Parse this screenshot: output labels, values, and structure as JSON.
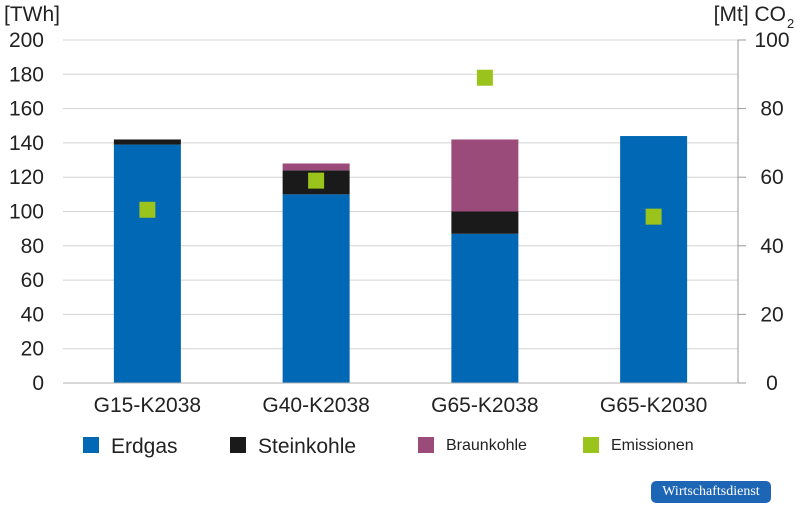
{
  "chart_data": {
    "type": "bar",
    "stacked": true,
    "left_axis_unit": "[TWh]",
    "right_axis_unit_main": "[Mt] CO",
    "right_axis_unit_sub": "2",
    "left_ylim": [
      0,
      200
    ],
    "left_ticks": [
      0,
      20,
      40,
      60,
      80,
      100,
      120,
      140,
      160,
      180,
      200
    ],
    "right_ylim": [
      0,
      100
    ],
    "right_ticks": [
      0,
      20,
      40,
      60,
      80,
      100
    ],
    "categories": [
      "G15-K2038",
      "G40-K2038",
      "G65-K2038",
      "G65-K2030"
    ],
    "series": [
      {
        "name": "Erdgas",
        "color": "#0068b4",
        "axis": "left",
        "values": [
          139,
          110,
          87,
          144
        ]
      },
      {
        "name": "Steinkohle",
        "color": "#1a1a1a",
        "axis": "left",
        "values": [
          3,
          14,
          13,
          0
        ]
      },
      {
        "name": "Braunkohle",
        "color": "#9b4b7a",
        "axis": "left",
        "values": [
          0,
          4,
          42,
          0
        ]
      }
    ],
    "points": {
      "name": "Emissionen",
      "color": "#9ac31c",
      "axis": "right",
      "values": [
        50.5,
        59,
        89,
        48.5
      ]
    },
    "grid": true,
    "legend_position": "bottom"
  },
  "legend": [
    {
      "label": "Erdgas",
      "color": "#0068b4",
      "size": 21
    },
    {
      "label": "Steinkohle",
      "color": "#1a1a1a",
      "size": 21
    },
    {
      "label": "Braunkohle",
      "color": "#9b4b7a",
      "size": 16
    },
    {
      "label": "Emissionen",
      "color": "#9ac31c",
      "size": 16
    }
  ],
  "brand": {
    "label": "Wirtschaftsdienst",
    "color": "#1d66b5"
  }
}
